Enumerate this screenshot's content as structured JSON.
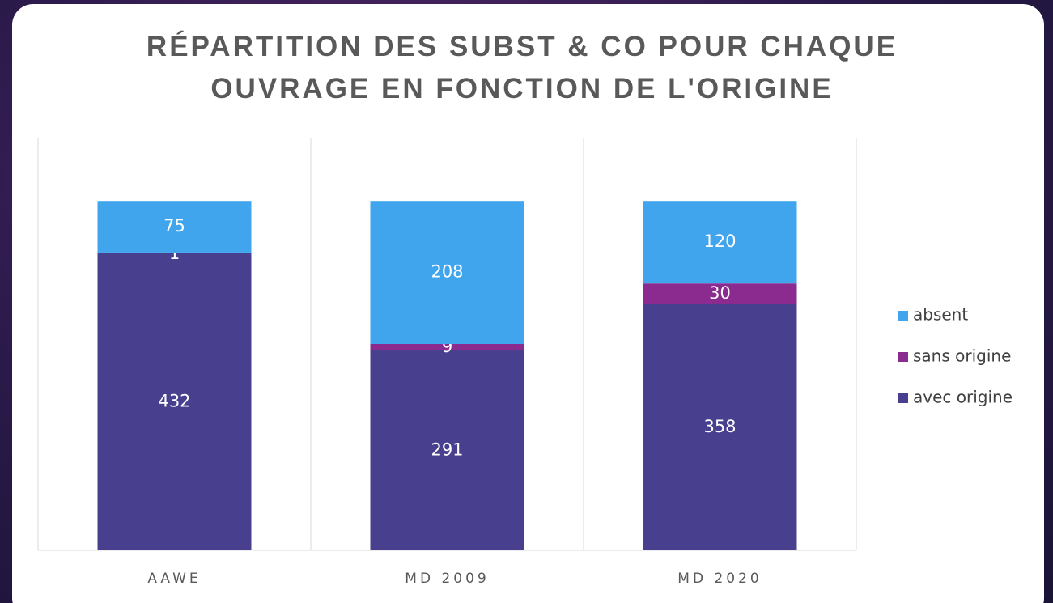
{
  "chart_data": {
    "type": "stacked_bar",
    "title": "RÉPARTITION DES SUBST & CO POUR CHAQUE OUVRAGE EN FONCTION DE L'ORIGINE",
    "categories": [
      "AAWE",
      "MD 2009",
      "MD 2020"
    ],
    "series": [
      {
        "name": "avec origine",
        "color": "#48408f",
        "values": [
          432,
          291,
          358
        ]
      },
      {
        "name": "sans origine",
        "color": "#8b2a8f",
        "values": [
          1,
          9,
          30
        ]
      },
      {
        "name": "absent",
        "color": "#41a5ee",
        "values": [
          75,
          208,
          120
        ]
      }
    ],
    "ylim": [
      0,
      600
    ]
  }
}
